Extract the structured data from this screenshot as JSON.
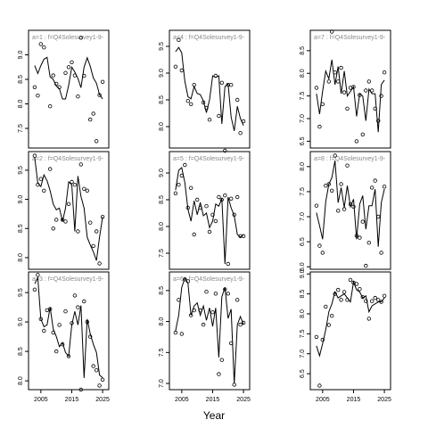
{
  "figure": {
    "xlabel": "Year"
  },
  "chart_data": [
    {
      "type": "line",
      "strip": "a=1  :  f=Q4Solesurvey1-9-",
      "xlim": [
        2001,
        2027
      ],
      "ylim": [
        7.1,
        9.5
      ],
      "xticks": [],
      "yticks": [
        7.5,
        8.0,
        8.5,
        9.0
      ],
      "series": [
        {
          "kind": "line",
          "x": [
            2003,
            2004,
            2005,
            2006,
            2007,
            2008,
            2009,
            2010,
            2011,
            2012,
            2013,
            2014,
            2015,
            2016,
            2017,
            2018,
            2019,
            2020,
            2021,
            2022,
            2023,
            2024,
            2025
          ],
          "y": [
            8.78,
            8.62,
            8.78,
            8.91,
            8.95,
            8.55,
            8.5,
            8.36,
            8.31,
            8.1,
            8.1,
            8.38,
            8.75,
            8.65,
            8.52,
            8.33,
            8.75,
            8.94,
            8.77,
            8.53,
            8.42,
            8.19,
            8.1
          ]
        },
        {
          "kind": "points",
          "x": [
            2003,
            2004,
            2005,
            2006,
            2008,
            2009,
            2010,
            2011,
            2013,
            2014,
            2015,
            2016,
            2017,
            2018,
            2019,
            2021,
            2022,
            2023,
            2024,
            2025
          ],
          "y": [
            8.34,
            8.17,
            9.22,
            9.15,
            7.95,
            8.58,
            8.41,
            8.34,
            8.63,
            8.75,
            8.85,
            8.58,
            8.15,
            9.35,
            8.57,
            7.68,
            7.8,
            7.24,
            8.18,
            8.45
          ]
        }
      ]
    },
    {
      "type": "line",
      "strip": "a=4  :  f=Q4Solesurvey1-9-",
      "xlim": [
        2001,
        2027
      ],
      "ylim": [
        7.6,
        9.8
      ],
      "xticks": [],
      "yticks": [
        8.0,
        8.5,
        9.0,
        9.5
      ],
      "series": [
        {
          "kind": "line",
          "x": [
            2003,
            2004,
            2005,
            2006,
            2007,
            2008,
            2009,
            2010,
            2011,
            2012,
            2013,
            2014,
            2015,
            2016,
            2017,
            2018,
            2019,
            2020,
            2021,
            2022,
            2023,
            2024,
            2025
          ],
          "y": [
            9.4,
            9.48,
            9.38,
            8.85,
            8.56,
            8.52,
            8.75,
            8.62,
            8.6,
            8.48,
            8.26,
            8.5,
            8.95,
            8.92,
            8.95,
            8.05,
            8.75,
            8.8,
            8.18,
            7.92,
            8.38,
            8.15,
            8.02
          ]
        },
        {
          "kind": "points",
          "x": [
            2003,
            2004,
            2005,
            2007,
            2008,
            2009,
            2012,
            2013,
            2014,
            2016,
            2017,
            2018,
            2019,
            2020,
            2021,
            2023,
            2024,
            2025
          ],
          "y": [
            9.12,
            9.62,
            9.05,
            8.48,
            8.42,
            8.78,
            8.45,
            8.35,
            8.13,
            8.95,
            8.2,
            8.82,
            7.55,
            8.78,
            8.78,
            8.5,
            7.88,
            8.1
          ]
        }
      ]
    },
    {
      "type": "line",
      "strip": "a=7  :  f=Q4Solesurvey1-9-",
      "xlim": [
        2001,
        2027
      ],
      "ylim": [
        6.35,
        8.95
      ],
      "xticks": [],
      "yticks": [
        6.5,
        7.0,
        7.5,
        8.0,
        8.5
      ],
      "series": [
        {
          "kind": "line",
          "x": [
            2003,
            2004,
            2005,
            2006,
            2007,
            2008,
            2009,
            2010,
            2011,
            2012,
            2013,
            2014,
            2015,
            2016,
            2017,
            2018,
            2019,
            2020,
            2021,
            2022,
            2023,
            2024,
            2025
          ],
          "y": [
            7.55,
            7.1,
            7.6,
            8.05,
            7.88,
            8.3,
            7.75,
            8.15,
            7.55,
            8.05,
            7.5,
            7.6,
            7.7,
            7.05,
            7.55,
            7.5,
            6.95,
            7.65,
            7.55,
            7.55,
            6.7,
            7.75,
            7.85
          ]
        },
        {
          "kind": "points",
          "x": [
            2003,
            2004,
            2005,
            2007,
            2008,
            2009,
            2010,
            2011,
            2012,
            2013,
            2014,
            2015,
            2016,
            2017,
            2018,
            2019,
            2020,
            2021,
            2022,
            2023,
            2024,
            2025
          ],
          "y": [
            7.68,
            6.82,
            7.32,
            7.82,
            8.92,
            8.02,
            7.82,
            8.12,
            7.58,
            7.22,
            7.68,
            7.7,
            6.5,
            7.52,
            6.65,
            7.62,
            7.82,
            7.62,
            7.22,
            6.95,
            7.5,
            8.02
          ]
        }
      ]
    },
    {
      "type": "line",
      "strip": "a=2  :  f=Q4Solesurvey1-9-",
      "xlim": [
        2001,
        2027
      ],
      "ylim": [
        7.8,
        9.82
      ],
      "xticks": [],
      "yticks": [
        8.0,
        8.5,
        9.0,
        9.5
      ],
      "series": [
        {
          "kind": "line",
          "x": [
            2003,
            2004,
            2005,
            2006,
            2007,
            2008,
            2009,
            2010,
            2011,
            2012,
            2013,
            2014,
            2015,
            2016,
            2017,
            2018,
            2019,
            2020,
            2021,
            2022,
            2023,
            2024,
            2025
          ],
          "y": [
            9.72,
            9.28,
            9.22,
            9.42,
            9.32,
            9.15,
            8.92,
            8.82,
            8.85,
            8.62,
            8.85,
            9.3,
            9.25,
            8.45,
            9.4,
            9.05,
            8.85,
            8.35,
            8.22,
            8.1,
            7.95,
            8.35,
            8.7
          ]
        },
        {
          "kind": "points",
          "x": [
            2003,
            2004,
            2005,
            2006,
            2008,
            2009,
            2010,
            2012,
            2013,
            2014,
            2015,
            2016,
            2017,
            2018,
            2019,
            2020,
            2021,
            2022,
            2023,
            2024,
            2025
          ],
          "y": [
            9.75,
            9.25,
            9.35,
            9.15,
            9.52,
            8.5,
            8.65,
            8.65,
            8.62,
            8.92,
            9.3,
            9.25,
            8.45,
            9.6,
            9.18,
            9.15,
            8.6,
            8.2,
            8.45,
            7.9,
            8.7
          ]
        }
      ]
    },
    {
      "type": "line",
      "strip": "a=5  :  f=Q4Solesurvey1-9-",
      "xlim": [
        2001,
        2027
      ],
      "ylim": [
        7.2,
        9.4
      ],
      "xticks": [],
      "yticks": [
        7.5,
        8.0,
        8.5,
        9.0
      ],
      "series": [
        {
          "kind": "line",
          "x": [
            2003,
            2004,
            2005,
            2006,
            2007,
            2008,
            2009,
            2010,
            2011,
            2012,
            2013,
            2014,
            2015,
            2016,
            2017,
            2018,
            2019,
            2020,
            2021,
            2022,
            2023,
            2024,
            2025
          ],
          "y": [
            8.68,
            9.05,
            9.1,
            8.82,
            8.32,
            8.1,
            8.48,
            8.22,
            8.45,
            8.2,
            8.25,
            7.98,
            8.1,
            8.42,
            8.38,
            8.52,
            7.3,
            8.55,
            8.35,
            8.2,
            7.85,
            7.8,
            7.85
          ]
        },
        {
          "kind": "points",
          "x": [
            2003,
            2004,
            2005,
            2006,
            2007,
            2008,
            2009,
            2010,
            2011,
            2013,
            2014,
            2015,
            2016,
            2017,
            2018,
            2019,
            2020,
            2021,
            2022,
            2023,
            2024,
            2025
          ],
          "y": [
            8.62,
            8.78,
            8.95,
            9.15,
            8.35,
            8.72,
            7.85,
            8.5,
            8.35,
            8.38,
            7.9,
            8.22,
            8.1,
            8.55,
            8.5,
            8.58,
            7.3,
            8.52,
            8.22,
            8.55,
            7.82,
            7.82
          ]
        }
      ]
    },
    {
      "type": "line",
      "strip": "a=8  :  f=Q4Solesurvey1-9-",
      "xlim": [
        2001,
        2027
      ],
      "ylim": [
        5.95,
        8.3
      ],
      "xticks": [],
      "yticks": [
        6.0,
        6.5,
        7.0,
        7.5,
        8.0
      ],
      "series": [
        {
          "kind": "line",
          "x": [
            2003,
            2004,
            2005,
            2006,
            2007,
            2008,
            2009,
            2010,
            2011,
            2012,
            2013,
            2014,
            2015,
            2016,
            2017,
            2018,
            2019,
            2020,
            2021,
            2022,
            2023,
            2024,
            2025
          ],
          "y": [
            7.08,
            6.82,
            6.55,
            7.3,
            7.65,
            7.78,
            8.12,
            7.28,
            7.58,
            7.18,
            7.62,
            7.2,
            7.35,
            6.55,
            7.25,
            7.42,
            6.75,
            7.22,
            7.22,
            7.55,
            6.4,
            7.28,
            7.55
          ]
        },
        {
          "kind": "points",
          "x": [
            2003,
            2004,
            2005,
            2006,
            2007,
            2008,
            2009,
            2010,
            2011,
            2012,
            2013,
            2014,
            2015,
            2016,
            2017,
            2018,
            2019,
            2020,
            2021,
            2022,
            2023,
            2024,
            2025
          ],
          "y": [
            7.22,
            6.42,
            6.28,
            7.62,
            7.65,
            7.52,
            8.22,
            7.12,
            7.65,
            7.15,
            8.02,
            7.25,
            7.2,
            6.62,
            6.58,
            6.9,
            6.02,
            6.48,
            7.58,
            7.72,
            7.0,
            6.28,
            7.6
          ]
        }
      ]
    },
    {
      "type": "line",
      "strip": "a=3  :  f=Q4Solesurvey1-9-",
      "xlim": [
        2001,
        2027
      ],
      "ylim": [
        7.85,
        9.85
      ],
      "xticks": [
        2005,
        2015,
        2025
      ],
      "yticks": [
        8.0,
        8.5,
        9.0,
        9.5
      ],
      "series": [
        {
          "kind": "line",
          "x": [
            2003,
            2004,
            2005,
            2006,
            2007,
            2008,
            2009,
            2010,
            2011,
            2012,
            2013,
            2014,
            2015,
            2016,
            2017,
            2018,
            2019,
            2020,
            2021,
            2022,
            2023,
            2024,
            2025
          ],
          "y": [
            9.65,
            9.75,
            9.05,
            8.92,
            8.95,
            9.25,
            8.88,
            8.75,
            8.58,
            8.65,
            8.48,
            8.42,
            8.95,
            9.18,
            8.95,
            9.28,
            8.05,
            9.05,
            8.8,
            8.62,
            8.48,
            8.1,
            8.05
          ]
        },
        {
          "kind": "points",
          "x": [
            2003,
            2004,
            2005,
            2006,
            2007,
            2008,
            2009,
            2010,
            2011,
            2012,
            2013,
            2014,
            2015,
            2016,
            2017,
            2018,
            2019,
            2020,
            2021,
            2022,
            2023,
            2024,
            2025
          ],
          "y": [
            9.55,
            9.8,
            9.05,
            8.85,
            9.2,
            9.22,
            8.82,
            8.5,
            8.95,
            8.62,
            9.18,
            8.42,
            8.98,
            9.45,
            9.25,
            7.85,
            9.35,
            9.0,
            8.75,
            8.25,
            8.18,
            7.92,
            8.02
          ]
        }
      ]
    },
    {
      "type": "line",
      "strip": "a=6  :  f=Q4Solesurvey1-9-",
      "xlim": [
        2001,
        2027
      ],
      "ylim": [
        6.9,
        8.8
      ],
      "xticks": [
        2005,
        2015,
        2025
      ],
      "yticks": [
        7.0,
        7.5,
        8.0,
        8.5
      ],
      "series": [
        {
          "kind": "line",
          "x": [
            2003,
            2004,
            2005,
            2006,
            2007,
            2008,
            2009,
            2010,
            2011,
            2012,
            2013,
            2014,
            2015,
            2016,
            2017,
            2018,
            2019,
            2020,
            2021,
            2022,
            2023,
            2024,
            2025
          ],
          "y": [
            7.85,
            8.1,
            8.55,
            8.7,
            8.62,
            8.1,
            8.25,
            8.3,
            8.1,
            8.25,
            8.02,
            8.22,
            7.92,
            8.22,
            7.42,
            8.4,
            8.55,
            8.05,
            8.2,
            7.0,
            7.95,
            8.08,
            7.95
          ]
        },
        {
          "kind": "points",
          "x": [
            2003,
            2004,
            2005,
            2006,
            2007,
            2008,
            2009,
            2011,
            2012,
            2013,
            2015,
            2016,
            2017,
            2018,
            2019,
            2020,
            2021,
            2022,
            2023,
            2024,
            2025
          ],
          "y": [
            7.82,
            8.35,
            7.8,
            8.68,
            8.65,
            8.1,
            8.18,
            8.18,
            7.95,
            8.48,
            8.15,
            8.45,
            7.15,
            7.38,
            8.52,
            8.45,
            7.65,
            6.98,
            8.35,
            7.95,
            7.98
          ]
        }
      ]
    },
    {
      "type": "line",
      "strip": "",
      "xlim": [
        2001,
        2027
      ],
      "ylim": [
        6.1,
        9.05
      ],
      "xticks": [
        2005,
        2015,
        2025
      ],
      "yticks": [
        6.5,
        7.0,
        7.5,
        8.0,
        8.5,
        9.0
      ],
      "series": [
        {
          "kind": "line",
          "x": [
            2003,
            2004,
            2005,
            2006,
            2007,
            2008,
            2009,
            2010,
            2011,
            2012,
            2013,
            2014,
            2015,
            2016,
            2017,
            2018,
            2019,
            2020,
            2021,
            2022,
            2023,
            2024,
            2025
          ],
          "y": [
            7.2,
            6.95,
            7.25,
            7.6,
            8.05,
            8.25,
            8.55,
            8.4,
            8.45,
            8.5,
            8.4,
            8.3,
            8.8,
            8.6,
            8.55,
            8.4,
            8.45,
            8.05,
            8.2,
            8.25,
            8.3,
            8.3,
            8.4
          ]
        },
        {
          "kind": "points",
          "x": [
            2003,
            2004,
            2005,
            2006,
            2007,
            2008,
            2009,
            2010,
            2011,
            2012,
            2013,
            2014,
            2015,
            2016,
            2017,
            2018,
            2019,
            2020,
            2021,
            2022,
            2023,
            2024,
            2025
          ],
          "y": [
            7.42,
            6.2,
            7.35,
            8.18,
            7.72,
            7.95,
            8.5,
            8.6,
            8.35,
            8.55,
            8.35,
            8.85,
            8.78,
            8.75,
            8.62,
            8.42,
            8.32,
            7.88,
            8.32,
            8.4,
            8.35,
            8.3,
            8.45
          ]
        }
      ]
    }
  ]
}
